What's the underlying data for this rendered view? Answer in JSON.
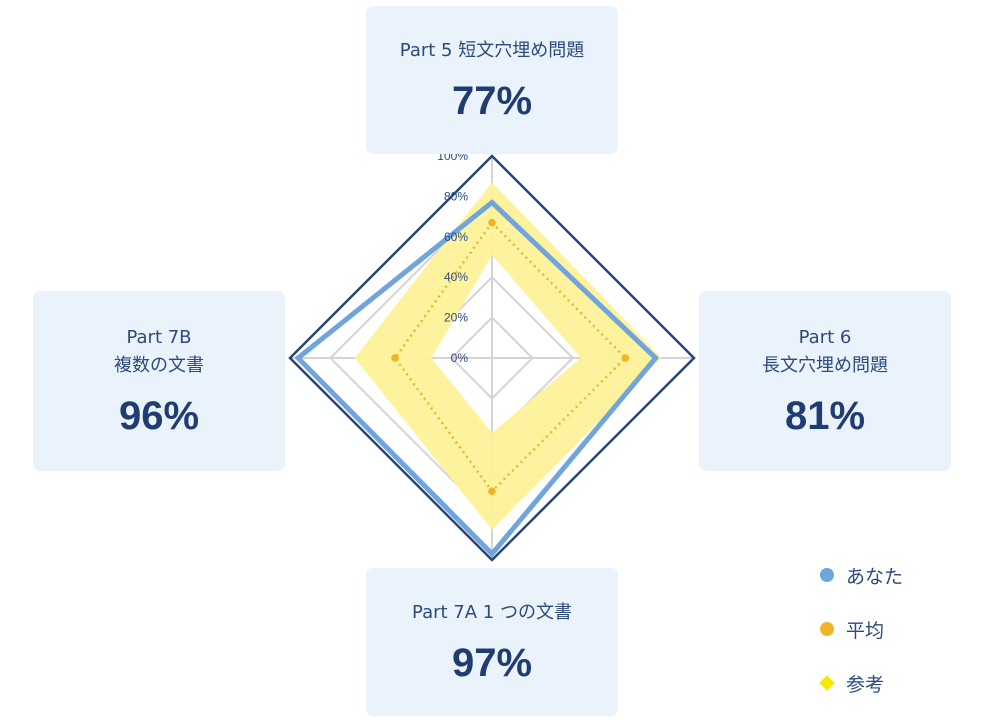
{
  "chart_data": {
    "type": "radar",
    "axes": [
      {
        "id": "top",
        "line1": "Part 5 短文穴埋め問題",
        "line2": "",
        "display": "77%"
      },
      {
        "id": "right",
        "line1": "Part 6",
        "line2": "長文穴埋め問題",
        "display": "81%"
      },
      {
        "id": "bottom",
        "line1": "Part 7A  1 つの文書",
        "line2": "",
        "display": "97%"
      },
      {
        "id": "left",
        "line1": "Part 7B",
        "line2": "複数の文書",
        "display": "96%"
      }
    ],
    "ticks": [
      "0%",
      "20%",
      "40%",
      "60%",
      "80%",
      "100%"
    ],
    "range": [
      0,
      100
    ],
    "series": [
      {
        "name": "あなた",
        "key": "you",
        "values": [
          77,
          81,
          97,
          96
        ],
        "color": "#6fa4dc"
      },
      {
        "name": "平均",
        "key": "avg",
        "values": [
          67,
          66,
          66,
          48
        ],
        "color": "#efb42a"
      },
      {
        "name": "参考",
        "key": "ref",
        "lower": [
          51,
          44,
          37,
          30
        ],
        "upper": [
          87,
          84,
          85,
          68
        ],
        "color": "#f7e800"
      }
    ],
    "colors": {
      "outline": "#27457a",
      "grid": "#d4d4d4",
      "band": "#fdf29a",
      "card": "#eaf3fc"
    }
  }
}
